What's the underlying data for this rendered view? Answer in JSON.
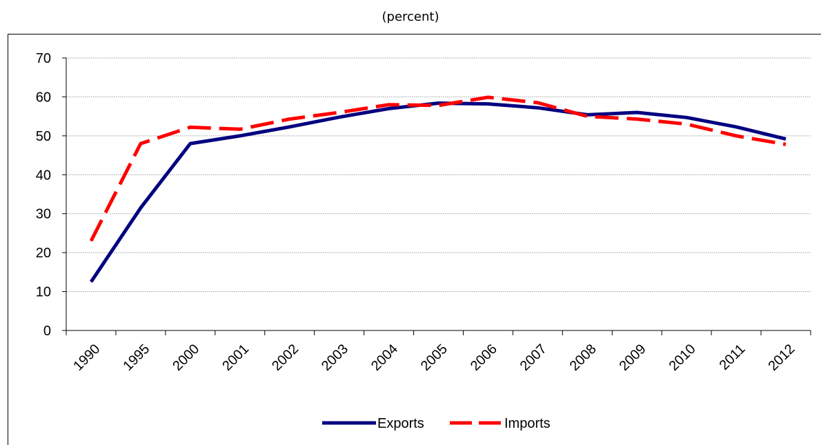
{
  "subtitle": "(percent)",
  "chart_data": {
    "type": "line",
    "title": "",
    "xlabel": "",
    "ylabel": "",
    "categories": [
      "1990",
      "1995",
      "2000",
      "2001",
      "2002",
      "2003",
      "2004",
      "2005",
      "2006",
      "2007",
      "2008",
      "2009",
      "2010",
      "2011",
      "2012"
    ],
    "ylim": [
      0,
      70
    ],
    "yticks": [
      0,
      10,
      20,
      30,
      40,
      50,
      60,
      70
    ],
    "grid": true,
    "legend_position": "bottom",
    "series": [
      {
        "name": "Exports",
        "color": "#000080",
        "style": "solid",
        "values": [
          12.5,
          31.5,
          48,
          50,
          52.3,
          54.8,
          57,
          58.4,
          58.2,
          57.2,
          55.4,
          56,
          54.7,
          52.3,
          49.2
        ]
      },
      {
        "name": "Imports",
        "color": "#ff0000",
        "style": "dashed",
        "values": [
          23,
          48,
          52.2,
          51.7,
          54.3,
          56,
          58,
          57.8,
          59.9,
          58.5,
          55,
          54.3,
          53,
          50,
          47.8
        ]
      }
    ]
  }
}
